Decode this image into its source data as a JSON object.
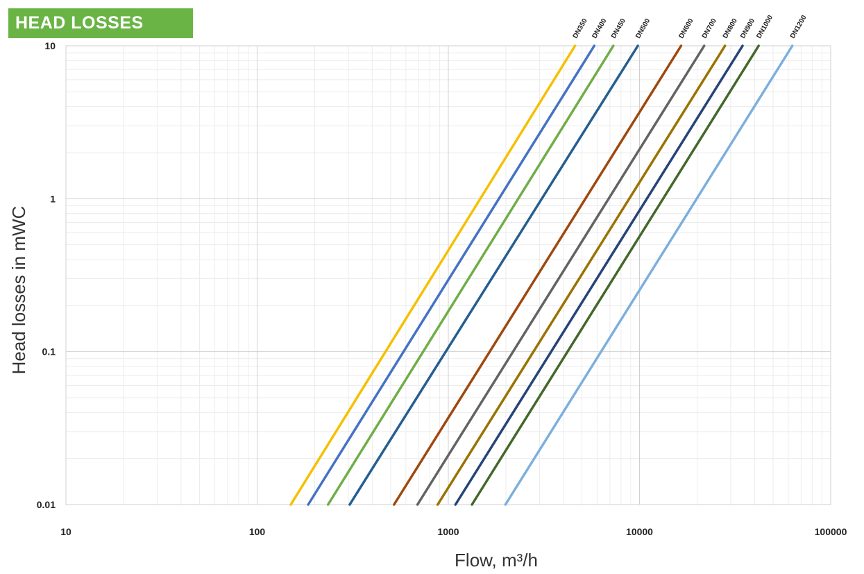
{
  "header": {
    "title": "HEAD LOSSES"
  },
  "chart_data": {
    "type": "line",
    "title": "HEAD LOSSES",
    "xlabel": "Flow, m³/h",
    "ylabel": "Head losses in mWC",
    "xscale": "log",
    "yscale": "log",
    "xlim": [
      10,
      100000
    ],
    "ylim": [
      0.01,
      10
    ],
    "xticks": [
      "10",
      "100",
      "1000",
      "10000",
      "100000"
    ],
    "yticks": [
      "0.01",
      "0.1",
      "1",
      "10"
    ],
    "grid": true,
    "legend": "labels at top end of each line",
    "series": [
      {
        "name": "DN350",
        "color": "#f5c000",
        "x": [
          150,
          4600
        ],
        "y": [
          0.01,
          10
        ]
      },
      {
        "name": "DN400",
        "color": "#4472c4",
        "x": [
          185,
          5800
        ],
        "y": [
          0.01,
          10
        ]
      },
      {
        "name": "DN450",
        "color": "#70ad47",
        "x": [
          235,
          7300
        ],
        "y": [
          0.01,
          10
        ]
      },
      {
        "name": "DN500",
        "color": "#255e91",
        "x": [
          305,
          9800
        ],
        "y": [
          0.01,
          10
        ]
      },
      {
        "name": "DN600",
        "color": "#9e480e",
        "x": [
          520,
          16500
        ],
        "y": [
          0.01,
          10
        ]
      },
      {
        "name": "DN700",
        "color": "#636363",
        "x": [
          690,
          21800
        ],
        "y": [
          0.01,
          10
        ]
      },
      {
        "name": "DN800",
        "color": "#997300",
        "x": [
          880,
          28000
        ],
        "y": [
          0.01,
          10
        ]
      },
      {
        "name": "DN900",
        "color": "#264478",
        "x": [
          1090,
          34600
        ],
        "y": [
          0.01,
          10
        ]
      },
      {
        "name": "DN1000",
        "color": "#43682b",
        "x": [
          1330,
          42000
        ],
        "y": [
          0.01,
          10
        ]
      },
      {
        "name": "DN1200",
        "color": "#7cafdd",
        "x": [
          1990,
          63000
        ],
        "y": [
          0.01,
          10
        ]
      }
    ]
  }
}
